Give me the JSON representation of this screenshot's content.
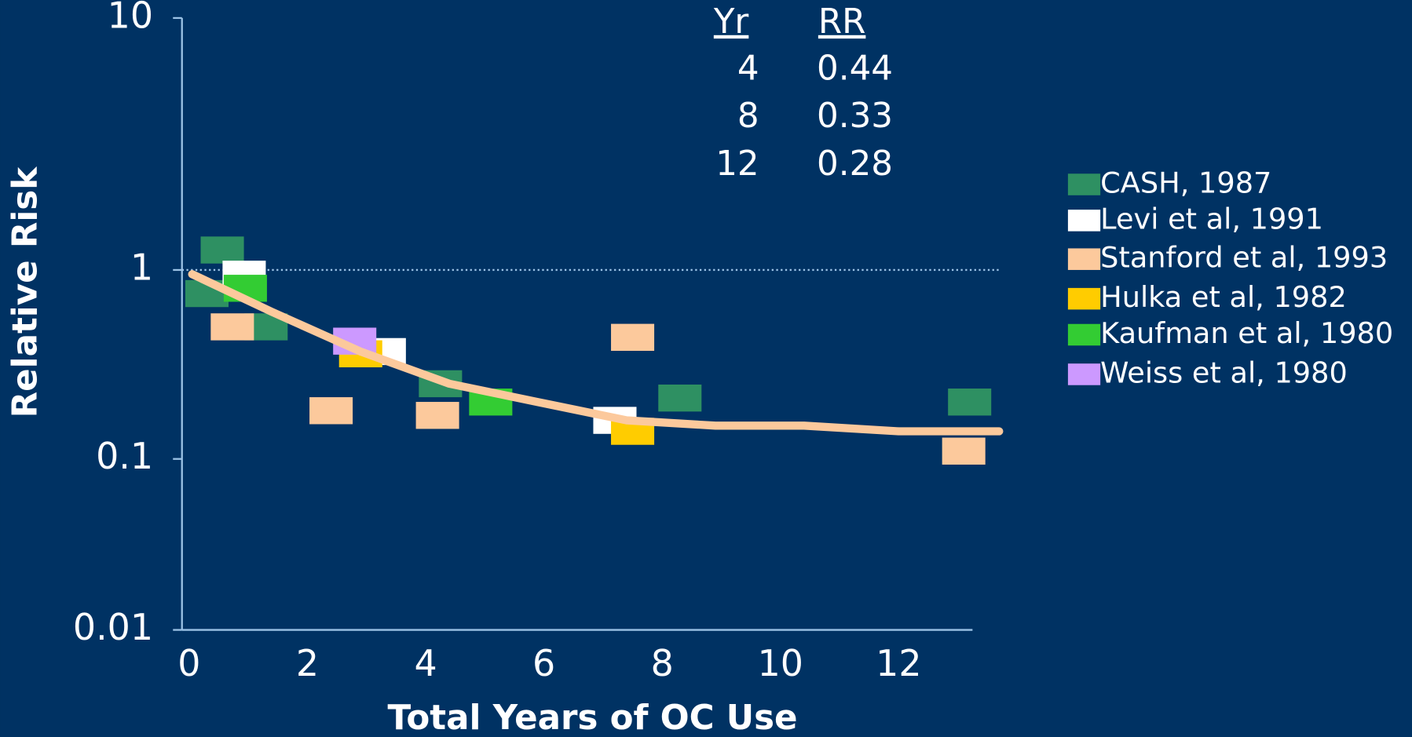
{
  "chart_data": {
    "type": "scatter",
    "x_label": "Total Years of OC Use",
    "y_label": "Relative Risk",
    "xlim": [
      0,
      13.25
    ],
    "xticks": [
      0,
      2,
      4,
      6,
      8,
      10,
      12
    ],
    "ylim": [
      0.01,
      10
    ],
    "yticks": [
      10,
      1,
      0.1,
      0.01
    ],
    "y_log": true,
    "hline": 1,
    "series": [
      {
        "name": "CASH, 1987",
        "color": "#2e9062",
        "x": [
          0.56,
          0.3,
          1.3,
          4.25,
          8.3,
          13.2
        ],
        "values": [
          1.2,
          0.75,
          0.5,
          0.25,
          0.21,
          0.2
        ]
      },
      {
        "name": "Levi et al, 1991",
        "color": "#ffffff",
        "x": [
          0.93,
          3.3,
          7.2
        ],
        "values": [
          0.95,
          0.37,
          0.16
        ]
      },
      {
        "name": "Stanford et al, 1993",
        "color": "#fcc99c",
        "x": [
          0.73,
          2.4,
          4.2,
          7.5,
          13.1
        ],
        "values": [
          0.5,
          0.18,
          0.17,
          0.44,
          0.11
        ]
      },
      {
        "name": "Hulka et al, 1982",
        "color": "#ffcc00",
        "x": [
          2.9,
          7.5
        ],
        "values": [
          0.36,
          0.14
        ]
      },
      {
        "name": "Kaufman et al, 1980",
        "color": "#33cc33",
        "x": [
          0.95,
          5.1
        ],
        "values": [
          0.8,
          0.2
        ]
      },
      {
        "name": "Weiss et al, 1980",
        "color": "#cc99ff",
        "x": [
          2.8
        ],
        "values": [
          0.42
        ]
      }
    ],
    "curve": {
      "color": "#fcc99c",
      "x": [
        0.05,
        1.4,
        2.9,
        4.4,
        5.9,
        7.4,
        8.9,
        10.4,
        12,
        13.7
      ],
      "values": [
        0.95,
        0.6,
        0.37,
        0.25,
        0.2,
        0.16,
        0.15,
        0.15,
        0.14,
        0.14
      ]
    },
    "table": {
      "columns": [
        "Yr",
        "RR"
      ],
      "rows": [
        [
          4,
          0.44
        ],
        [
          8,
          0.33
        ],
        [
          12,
          0.28
        ]
      ]
    }
  }
}
